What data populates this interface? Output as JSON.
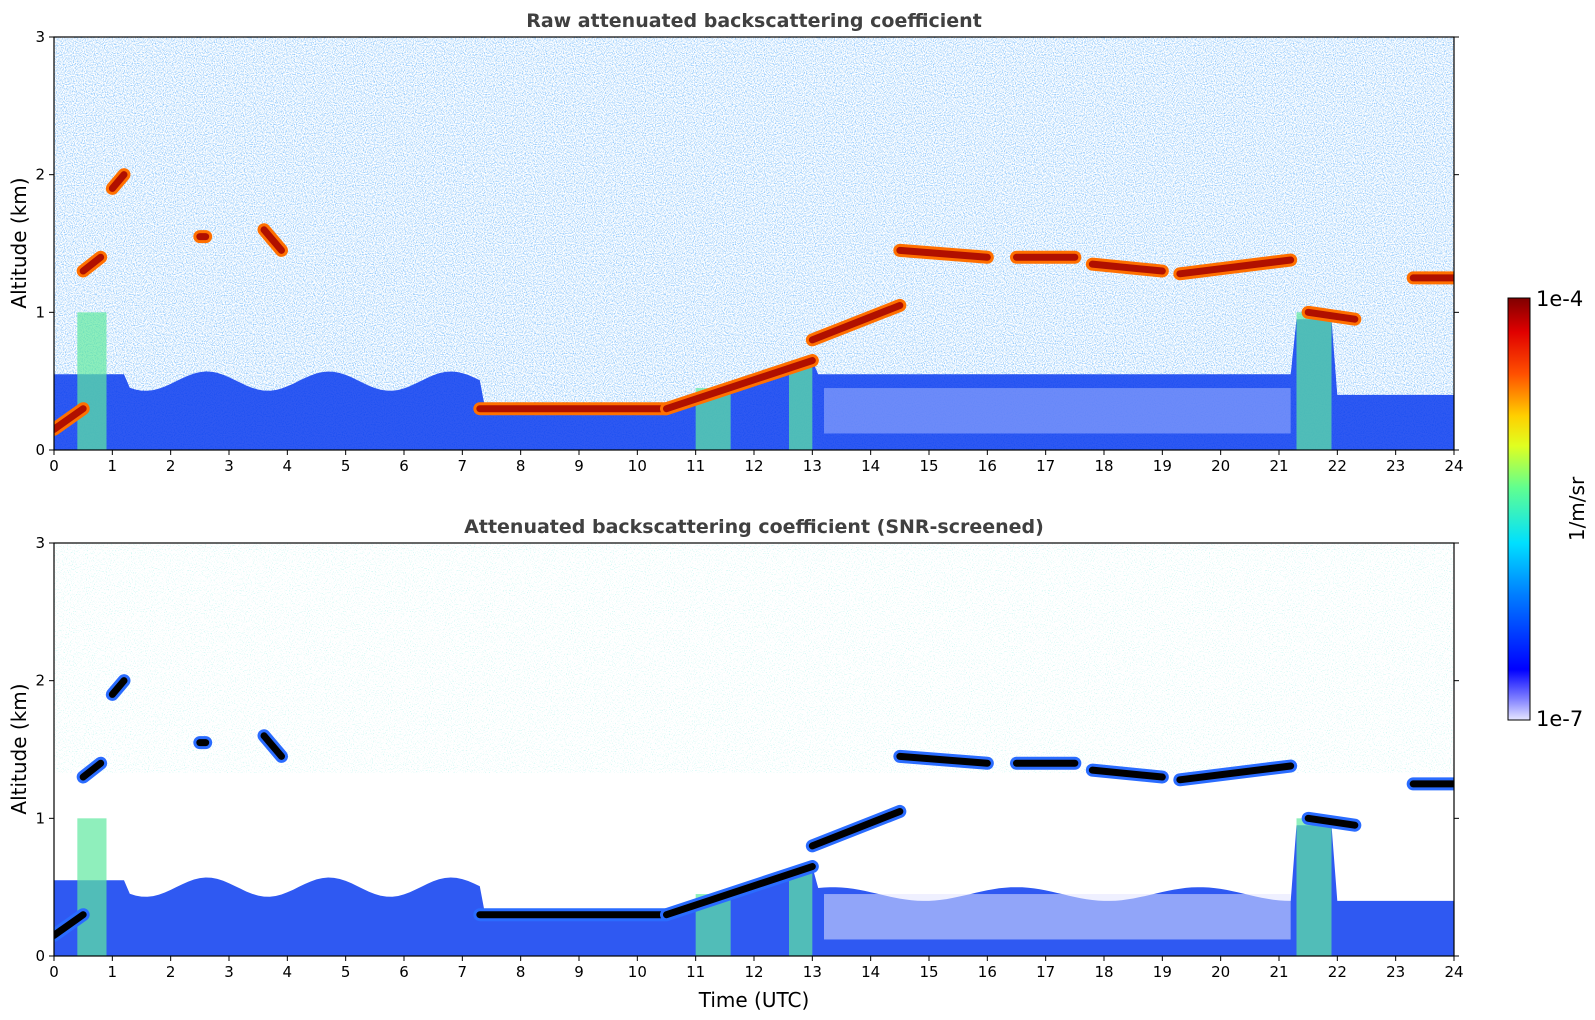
{
  "chart_data": [
    {
      "type": "heatmap",
      "title": "Raw attenuated backscattering coefficient",
      "xlabel": "",
      "ylabel": "Altitude (km)",
      "xlim": [
        0,
        24
      ],
      "ylim": [
        0,
        3
      ],
      "x_ticks": [
        "0",
        "1",
        "2",
        "3",
        "4",
        "5",
        "6",
        "7",
        "8",
        "9",
        "10",
        "11",
        "12",
        "13",
        "14",
        "15",
        "16",
        "17",
        "18",
        "19",
        "20",
        "21",
        "22",
        "23",
        "24"
      ],
      "y_ticks": [
        "0",
        "1",
        "2",
        "3"
      ],
      "screened": false,
      "layers": [
        {
          "t_start": 0.0,
          "t_end": 0.5,
          "alt_start": 0.15,
          "alt_end": 0.3
        },
        {
          "t_start": 0.5,
          "t_end": 0.8,
          "alt_start": 1.3,
          "alt_end": 1.4
        },
        {
          "t_start": 1.0,
          "t_end": 1.2,
          "alt_start": 1.9,
          "alt_end": 2.0
        },
        {
          "t_start": 2.5,
          "t_end": 2.6,
          "alt_start": 1.55,
          "alt_end": 1.55
        },
        {
          "t_start": 3.6,
          "t_end": 3.9,
          "alt_start": 1.6,
          "alt_end": 1.45
        },
        {
          "t_start": 7.3,
          "t_end": 10.5,
          "alt_start": 0.3,
          "alt_end": 0.3
        },
        {
          "t_start": 10.5,
          "t_end": 13.0,
          "alt_start": 0.3,
          "alt_end": 0.65
        },
        {
          "t_start": 13.0,
          "t_end": 14.5,
          "alt_start": 0.8,
          "alt_end": 1.05
        },
        {
          "t_start": 14.5,
          "t_end": 16.0,
          "alt_start": 1.45,
          "alt_end": 1.4
        },
        {
          "t_start": 16.5,
          "t_end": 17.5,
          "alt_start": 1.4,
          "alt_end": 1.4
        },
        {
          "t_start": 17.8,
          "t_end": 19.0,
          "alt_start": 1.35,
          "alt_end": 1.3
        },
        {
          "t_start": 19.3,
          "t_end": 21.2,
          "alt_start": 1.28,
          "alt_end": 1.38
        },
        {
          "t_start": 21.5,
          "t_end": 22.3,
          "alt_start": 1.0,
          "alt_end": 0.95
        },
        {
          "t_start": 23.3,
          "t_end": 24.0,
          "alt_start": 1.25,
          "alt_end": 1.25
        }
      ]
    },
    {
      "type": "heatmap",
      "title": "Attenuated backscattering coefficient (SNR-screened)",
      "xlabel": "Time (UTC)",
      "ylabel": "Altitude (km)",
      "xlim": [
        0,
        24
      ],
      "ylim": [
        0,
        3
      ],
      "x_ticks": [
        "0",
        "1",
        "2",
        "3",
        "4",
        "5",
        "6",
        "7",
        "8",
        "9",
        "10",
        "11",
        "12",
        "13",
        "14",
        "15",
        "16",
        "17",
        "18",
        "19",
        "20",
        "21",
        "22",
        "23",
        "24"
      ],
      "y_ticks": [
        "0",
        "1",
        "2",
        "3"
      ],
      "screened": true,
      "layers": [
        {
          "t_start": 0.0,
          "t_end": 0.5,
          "alt_start": 0.15,
          "alt_end": 0.3
        },
        {
          "t_start": 0.5,
          "t_end": 0.8,
          "alt_start": 1.3,
          "alt_end": 1.4
        },
        {
          "t_start": 1.0,
          "t_end": 1.2,
          "alt_start": 1.9,
          "alt_end": 2.0
        },
        {
          "t_start": 2.5,
          "t_end": 2.6,
          "alt_start": 1.55,
          "alt_end": 1.55
        },
        {
          "t_start": 3.6,
          "t_end": 3.9,
          "alt_start": 1.6,
          "alt_end": 1.45
        },
        {
          "t_start": 7.3,
          "t_end": 10.5,
          "alt_start": 0.3,
          "alt_end": 0.3
        },
        {
          "t_start": 10.5,
          "t_end": 13.0,
          "alt_start": 0.3,
          "alt_end": 0.65
        },
        {
          "t_start": 13.0,
          "t_end": 14.5,
          "alt_start": 0.8,
          "alt_end": 1.05
        },
        {
          "t_start": 14.5,
          "t_end": 16.0,
          "alt_start": 1.45,
          "alt_end": 1.4
        },
        {
          "t_start": 16.5,
          "t_end": 17.5,
          "alt_start": 1.4,
          "alt_end": 1.4
        },
        {
          "t_start": 17.8,
          "t_end": 19.0,
          "alt_start": 1.35,
          "alt_end": 1.3
        },
        {
          "t_start": 19.3,
          "t_end": 21.2,
          "alt_start": 1.28,
          "alt_end": 1.38
        },
        {
          "t_start": 21.5,
          "t_end": 22.3,
          "alt_start": 1.0,
          "alt_end": 0.95
        },
        {
          "t_start": 23.3,
          "t_end": 24.0,
          "alt_start": 1.25,
          "alt_end": 1.25
        }
      ]
    }
  ],
  "colorbar": {
    "label": "1/m/sr",
    "max_label": "1e-4",
    "min_label": "1e-7",
    "scale": "log",
    "colormap": "jet"
  }
}
